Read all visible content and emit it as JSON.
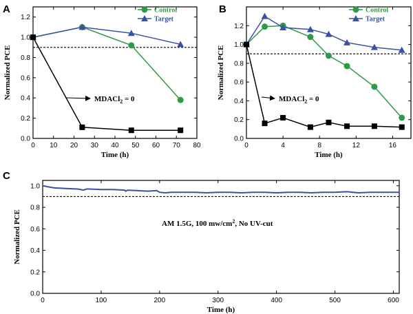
{
  "chart_data": [
    {
      "panel": "A",
      "type": "line",
      "xlabel": "Time (h)",
      "ylabel": "Normalized PCE",
      "xlim": [
        0,
        80
      ],
      "ylim": [
        0,
        1.3
      ],
      "xticks": [
        "0",
        "10",
        "20",
        "30",
        "40",
        "50",
        "60",
        "70",
        "80"
      ],
      "yticks": [
        "0.0",
        "0.2",
        "0.4",
        "0.6",
        "0.8",
        "1.0",
        "1.2"
      ],
      "reference_line": {
        "y": 0.9,
        "style": "dashed"
      },
      "legend_position": "top-right",
      "series": [
        {
          "name": "Control",
          "marker": "circle",
          "color": "#2f9a46",
          "x": [
            0,
            24,
            48,
            72
          ],
          "y": [
            1.0,
            1.1,
            0.92,
            0.38
          ]
        },
        {
          "name": "Target",
          "marker": "triangle",
          "color": "#3a51a3",
          "x": [
            0,
            24,
            48,
            72
          ],
          "y": [
            1.0,
            1.1,
            1.04,
            0.93
          ]
        },
        {
          "name": "",
          "marker": "square",
          "color": "#000000",
          "x": [
            0,
            24,
            48,
            72
          ],
          "y": [
            1.0,
            0.11,
            0.08,
            0.08
          ]
        }
      ],
      "annotation": {
        "text_main": "MDACl",
        "text_sub": "2",
        "text_rest": " = 0",
        "arrow_to": [
          0.11,
          24
        ]
      }
    },
    {
      "panel": "B",
      "type": "line",
      "xlabel": "Time (h)",
      "ylabel": "Normalized PCE",
      "xlim": [
        0,
        18
      ],
      "ylim": [
        0,
        1.4
      ],
      "xticks": [
        "0",
        "4",
        "8",
        "12",
        "16"
      ],
      "yticks": [
        "0.0",
        "0.2",
        "0.4",
        "0.6",
        "0.8",
        "1.0",
        "1.2"
      ],
      "reference_line": {
        "y": 0.9,
        "style": "dashed"
      },
      "legend_position": "top-right",
      "series": [
        {
          "name": "Control",
          "marker": "circle",
          "color": "#2f9a46",
          "x": [
            0,
            2,
            4,
            7,
            9,
            11,
            14,
            17
          ],
          "y": [
            1.0,
            1.19,
            1.2,
            1.08,
            0.88,
            0.77,
            0.55,
            0.22
          ]
        },
        {
          "name": "Target",
          "marker": "triangle",
          "color": "#3a51a3",
          "x": [
            0,
            2,
            4,
            7,
            9,
            11,
            14,
            17
          ],
          "y": [
            1.0,
            1.3,
            1.18,
            1.16,
            1.11,
            1.02,
            0.97,
            0.94
          ]
        },
        {
          "name": "",
          "marker": "square",
          "color": "#000000",
          "x": [
            0,
            2,
            4,
            7,
            9,
            11,
            14,
            17
          ],
          "y": [
            1.0,
            0.16,
            0.22,
            0.12,
            0.17,
            0.13,
            0.13,
            0.12
          ]
        }
      ],
      "annotation": {
        "text_main": "MDACl",
        "text_sub": "2",
        "text_rest": " = 0",
        "arrow_to": [
          0.16,
          2
        ]
      }
    },
    {
      "panel": "C",
      "type": "line",
      "xlabel": "Time (h)",
      "ylabel": "Normalized PCE",
      "xlim": [
        0,
        610
      ],
      "ylim": [
        0,
        1.05
      ],
      "xticks": [
        "0",
        "100",
        "200",
        "300",
        "400",
        "500",
        "600"
      ],
      "yticks": [
        "0.0",
        "0.2",
        "0.4",
        "0.6",
        "0.8",
        "1.0"
      ],
      "reference_line": {
        "y": 0.9,
        "style": "dashed"
      },
      "series": [
        {
          "name": "",
          "marker": "none",
          "color": "#3a51a3",
          "x": [
            0,
            10,
            20,
            40,
            60,
            70,
            75,
            80,
            100,
            120,
            140,
            142,
            145,
            160,
            180,
            195,
            200,
            210,
            220,
            240,
            260,
            280,
            300,
            320,
            340,
            360,
            380,
            400,
            420,
            440,
            460,
            480,
            500,
            520,
            540,
            560,
            580,
            600,
            610
          ],
          "y": [
            1.0,
            0.99,
            0.98,
            0.975,
            0.97,
            0.96,
            0.97,
            0.97,
            0.965,
            0.965,
            0.96,
            0.95,
            0.96,
            0.955,
            0.95,
            0.955,
            0.94,
            0.935,
            0.94,
            0.94,
            0.94,
            0.935,
            0.94,
            0.94,
            0.935,
            0.94,
            0.94,
            0.935,
            0.94,
            0.94,
            0.935,
            0.94,
            0.94,
            0.945,
            0.935,
            0.94,
            0.94,
            0.94,
            0.94
          ]
        }
      ],
      "annotation": {
        "text_main": "AM 1.5G, 100 mw/cm",
        "text_sup": "2",
        "text_rest": ", No UV-cut"
      }
    }
  ]
}
